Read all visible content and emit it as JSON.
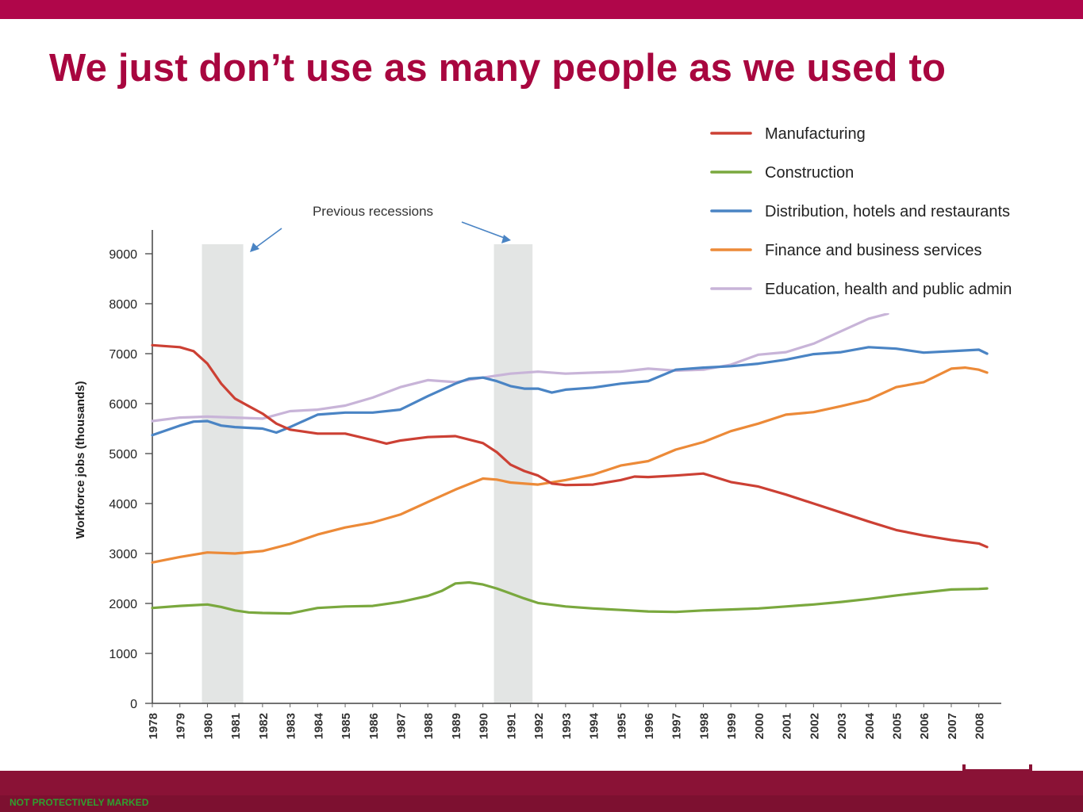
{
  "slide": {
    "title": "We just don’t use as many people as we used to",
    "footer_label": "NOT PROTECTIVELY MARKED",
    "colors": {
      "brand": "#a8063f",
      "bar": "#b0064a",
      "footer_label": "#2fa02f"
    }
  },
  "chart_data": {
    "type": "line",
    "title": "",
    "xlabel": "",
    "ylabel": "Workforce jobs (thousands)",
    "ylim": [
      0,
      9000
    ],
    "yticks": [
      "0",
      "1000",
      "2000",
      "3000",
      "4000",
      "5000",
      "6000",
      "7000",
      "8000",
      "9000"
    ],
    "xlim": [
      1978,
      2008.7
    ],
    "xticks": [
      "1978",
      "1979",
      "1980",
      "1981",
      "1982",
      "1983",
      "1984",
      "1985",
      "1986",
      "1987",
      "1988",
      "1989",
      "1990",
      "1991",
      "1992",
      "1993",
      "1994",
      "1995",
      "1996",
      "1997",
      "1998",
      "1999",
      "2000",
      "2001",
      "2002",
      "2003",
      "2004",
      "2005",
      "2006",
      "2007",
      "2008"
    ],
    "grid": false,
    "legend_position": "top-right",
    "annotation": "Previous recessions",
    "recessions": [
      [
        1979.8,
        1981.3
      ],
      [
        1990.4,
        1991.8
      ]
    ],
    "series": [
      {
        "name": "Manufacturing",
        "color": "#cc4034",
        "x": [
          1978,
          1979,
          1979.5,
          1980,
          1980.5,
          1981,
          1981.5,
          1982,
          1982.5,
          1983,
          1984,
          1985,
          1986,
          1986.5,
          1987,
          1988,
          1989,
          1990,
          1990.5,
          1991,
          1991.5,
          1992,
          1992.5,
          1993,
          1994,
          1995,
          1995.5,
          1996,
          1997,
          1998,
          1999,
          2000,
          2001,
          2002,
          2003,
          2004,
          2005,
          2006,
          2007,
          2008,
          2008.3
        ],
        "y": [
          7170,
          7130,
          7050,
          6800,
          6400,
          6100,
          5950,
          5800,
          5600,
          5480,
          5400,
          5400,
          5270,
          5200,
          5260,
          5330,
          5350,
          5210,
          5030,
          4780,
          4650,
          4560,
          4400,
          4370,
          4380,
          4470,
          4540,
          4530,
          4560,
          4600,
          4430,
          4340,
          4180,
          4000,
          3820,
          3640,
          3470,
          3360,
          3270,
          3200,
          3130
        ]
      },
      {
        "name": "Construction",
        "color": "#7aa83e",
        "x": [
          1978,
          1979,
          1980,
          1980.5,
          1981,
          1981.5,
          1982,
          1983,
          1984,
          1985,
          1986,
          1987,
          1988,
          1988.5,
          1989,
          1989.5,
          1990,
          1990.5,
          1991,
          1991.5,
          1992,
          1993,
          1994,
          1995,
          1996,
          1997,
          1998,
          1999,
          2000,
          2001,
          2002,
          2003,
          2004,
          2005,
          2006,
          2007,
          2008,
          2008.3
        ],
        "y": [
          1910,
          1950,
          1980,
          1930,
          1860,
          1820,
          1810,
          1800,
          1910,
          1940,
          1950,
          2030,
          2150,
          2250,
          2400,
          2420,
          2380,
          2300,
          2200,
          2100,
          2010,
          1940,
          1900,
          1870,
          1840,
          1830,
          1860,
          1880,
          1900,
          1940,
          1980,
          2030,
          2090,
          2160,
          2220,
          2280,
          2290,
          2300
        ]
      },
      {
        "name": "Distribution, hotels and restaurants",
        "color": "#4a84c4",
        "x": [
          1978,
          1979,
          1979.5,
          1980,
          1980.5,
          1981,
          1982,
          1982.5,
          1983,
          1984,
          1985,
          1986,
          1987,
          1988,
          1989,
          1989.5,
          1990,
          1990.5,
          1991,
          1991.5,
          1992,
          1992.5,
          1993,
          1994,
          1995,
          1996,
          1997,
          1998,
          1999,
          2000,
          2001,
          2002,
          2003,
          2004,
          2005,
          2006,
          2007,
          2008,
          2008.3
        ],
        "y": [
          5370,
          5560,
          5640,
          5650,
          5560,
          5530,
          5500,
          5420,
          5530,
          5780,
          5820,
          5820,
          5880,
          6150,
          6400,
          6500,
          6520,
          6450,
          6350,
          6300,
          6300,
          6220,
          6280,
          6320,
          6400,
          6450,
          6680,
          6720,
          6750,
          6800,
          6880,
          6990,
          7030,
          7130,
          7100,
          7020,
          7050,
          7080,
          7000
        ]
      },
      {
        "name": "Finance and business services",
        "color": "#ec8a38",
        "x": [
          1978,
          1979,
          1980,
          1981,
          1982,
          1983,
          1984,
          1985,
          1986,
          1987,
          1988,
          1989,
          1990,
          1990.5,
          1991,
          1992,
          1993,
          1994,
          1995,
          1996,
          1997,
          1998,
          1999,
          2000,
          2001,
          2002,
          2003,
          2004,
          2005,
          2006,
          2007,
          2007.5,
          2008,
          2008.3
        ],
        "y": [
          2820,
          2930,
          3020,
          3000,
          3050,
          3190,
          3380,
          3520,
          3620,
          3780,
          4030,
          4280,
          4500,
          4480,
          4420,
          4380,
          4470,
          4580,
          4760,
          4850,
          5080,
          5230,
          5450,
          5600,
          5780,
          5830,
          5950,
          6080,
          6330,
          6430,
          6700,
          6720,
          6680,
          6620
        ]
      },
      {
        "name": "Education, health and public admin",
        "color": "#c8b4d8",
        "x": [
          1978,
          1979,
          1980,
          1981,
          1982,
          1983,
          1984,
          1985,
          1986,
          1987,
          1988,
          1989,
          1990,
          1991,
          1992,
          1993,
          1994,
          1995,
          1996,
          1997,
          1998,
          1999,
          2000,
          2001,
          2002,
          2003,
          2004,
          2004.7
        ],
        "y": [
          5650,
          5720,
          5740,
          5720,
          5700,
          5850,
          5880,
          5960,
          6120,
          6330,
          6470,
          6430,
          6520,
          6600,
          6640,
          6600,
          6620,
          6640,
          6700,
          6660,
          6680,
          6780,
          6980,
          7030,
          7200,
          7450,
          7700,
          7800
        ]
      }
    ]
  }
}
